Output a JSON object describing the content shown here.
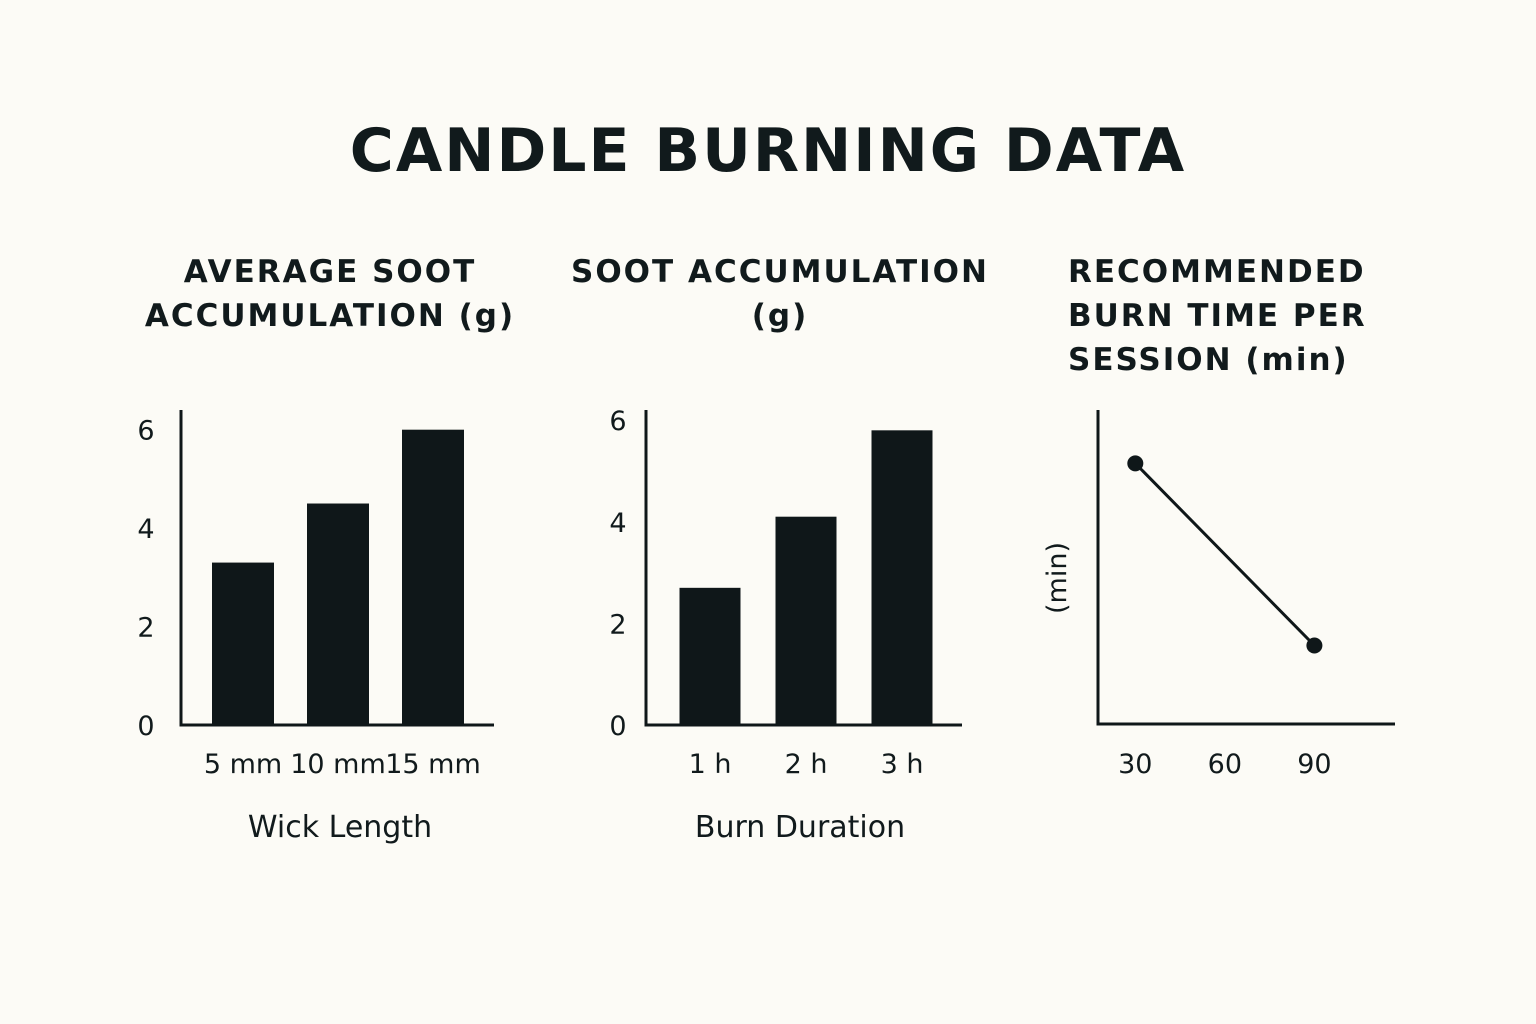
{
  "title": "CANDLE BURNING DATA",
  "colors": {
    "ink": "#0f1719",
    "background": "#fcfbf6"
  },
  "chart_data": [
    {
      "type": "bar",
      "title_line1": "AVERAGE SOOT",
      "title_line2": "ACCUMULATION (g)",
      "xlabel": "Wick Length",
      "ylabel": "",
      "categories": [
        "5 mm",
        "10 mm",
        "15 mm"
      ],
      "values": [
        3.3,
        4.5,
        6.0
      ],
      "ylim": [
        0,
        6.4
      ],
      "yticks": [
        0,
        2,
        4,
        6
      ],
      "grid": false
    },
    {
      "type": "bar",
      "title_line1": "SOOT ACCUMULATION",
      "title_line2": "(g)",
      "xlabel": "Burn Duration",
      "ylabel": "",
      "categories": [
        "1 h",
        "2 h",
        "3 h"
      ],
      "values": [
        2.7,
        4.1,
        5.8
      ],
      "ylim": [
        0,
        6.2
      ],
      "yticks": [
        0,
        2,
        4,
        6
      ],
      "grid": false
    },
    {
      "type": "line",
      "title_line1": "RECOMMENDED",
      "title_line2": "BURN TIME PER",
      "title_line3": "SESSION (min)",
      "xlabel": "",
      "ylabel": "(min)",
      "xticks": [
        30,
        60,
        90
      ],
      "xlim": [
        17.5,
        117
      ],
      "ylim": [
        0,
        100
      ],
      "x": [
        30,
        90
      ],
      "y": [
        83,
        25
      ],
      "grid": false
    }
  ]
}
